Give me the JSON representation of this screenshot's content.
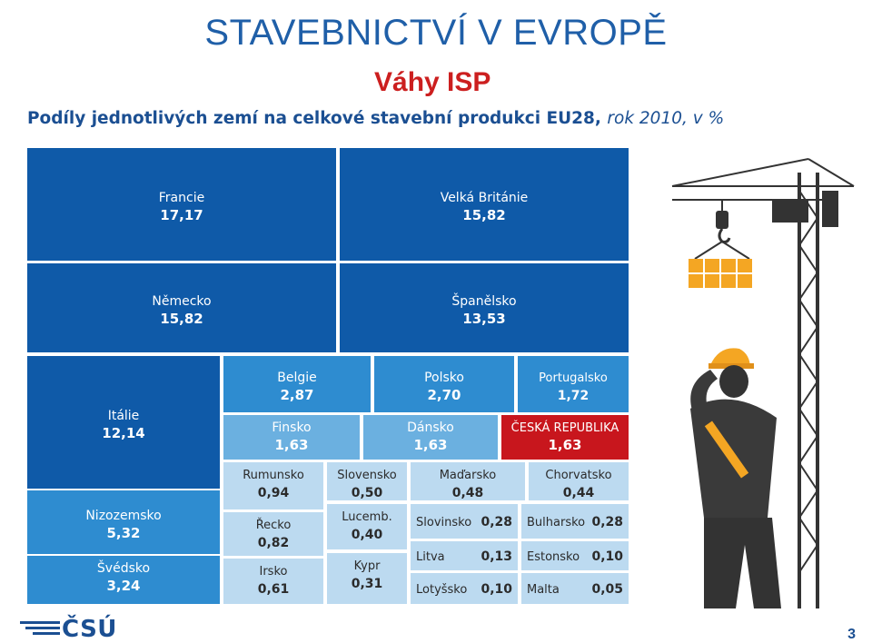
{
  "header": {
    "title": "STAVEBNICTVÍ V EVROPĚ",
    "subtitle": "Váhy ISP",
    "heading_main": "Podíly jednotlivých zemí na celkové stavební produkci EU28,",
    "heading_italic": "rok 2010, v %"
  },
  "footer": {
    "logo_text": "ČSÚ",
    "page_number": "3"
  },
  "colors": {
    "dark_blue": "#0f5aa8",
    "mid_blue": "#2e8cd0",
    "light_blue": "#6bb0e0",
    "pale_blue": "#bcdaf0",
    "czech_red": "#c8161d",
    "title_blue": "#1f5fa8"
  },
  "chart_data": {
    "type": "treemap",
    "unit": "%",
    "items": [
      {
        "label": "Francie",
        "value": "17,17",
        "v": 17.17,
        "tone": "dark_blue"
      },
      {
        "label": "Velká Británie",
        "value": "15,82",
        "v": 15.82,
        "tone": "dark_blue"
      },
      {
        "label": "Německo",
        "value": "15,82",
        "v": 15.82,
        "tone": "dark_blue"
      },
      {
        "label": "Španělsko",
        "value": "13,53",
        "v": 13.53,
        "tone": "dark_blue"
      },
      {
        "label": "Itálie",
        "value": "12,14",
        "v": 12.14,
        "tone": "dark_blue"
      },
      {
        "label": "Nizozemsko",
        "value": "5,32",
        "v": 5.32,
        "tone": "mid_blue"
      },
      {
        "label": "Švédsko",
        "value": "3,24",
        "v": 3.24,
        "tone": "mid_blue"
      },
      {
        "label": "Belgie",
        "value": "2,87",
        "v": 2.87,
        "tone": "mid_blue"
      },
      {
        "label": "Polsko",
        "value": "2,70",
        "v": 2.7,
        "tone": "mid_blue"
      },
      {
        "label": "Portugalsko",
        "value": "1,72",
        "v": 1.72,
        "tone": "mid_blue"
      },
      {
        "label": "Finsko",
        "value": "1,63",
        "v": 1.63,
        "tone": "light_blue"
      },
      {
        "label": "Dánsko",
        "value": "1,63",
        "v": 1.63,
        "tone": "light_blue"
      },
      {
        "label": "ČESKÁ REPUBLIKA",
        "value": "1,63",
        "v": 1.63,
        "tone": "czech_red"
      },
      {
        "label": "Rumunsko",
        "value": "0,94",
        "v": 0.94,
        "tone": "pale_blue"
      },
      {
        "label": "Řecko",
        "value": "0,82",
        "v": 0.82,
        "tone": "pale_blue"
      },
      {
        "label": "Irsko",
        "value": "0,61",
        "v": 0.61,
        "tone": "pale_blue"
      },
      {
        "label": "Slovensko",
        "value": "0,50",
        "v": 0.5,
        "tone": "pale_blue"
      },
      {
        "label": "Lucemb.",
        "value": "0,40",
        "v": 0.4,
        "tone": "pale_blue"
      },
      {
        "label": "Kypr",
        "value": "0,31",
        "v": 0.31,
        "tone": "pale_blue"
      },
      {
        "label": "Maďarsko",
        "value": "0,48",
        "v": 0.48,
        "tone": "pale_blue"
      },
      {
        "label": "Chorvatsko",
        "value": "0,44",
        "v": 0.44,
        "tone": "pale_blue"
      },
      {
        "label": "Slovinsko",
        "value": "0,28",
        "v": 0.28,
        "tone": "pale_blue"
      },
      {
        "label": "Bulharsko",
        "value": "0,28",
        "v": 0.28,
        "tone": "pale_blue"
      },
      {
        "label": "Litva",
        "value": "0,13",
        "v": 0.13,
        "tone": "pale_blue"
      },
      {
        "label": "Estonsko",
        "value": "0,10",
        "v": 0.1,
        "tone": "pale_blue"
      },
      {
        "label": "Lotyšsko",
        "value": "0,10",
        "v": 0.1,
        "tone": "pale_blue"
      },
      {
        "label": "Malta",
        "value": "0,05",
        "v": 0.05,
        "tone": "pale_blue"
      }
    ]
  }
}
